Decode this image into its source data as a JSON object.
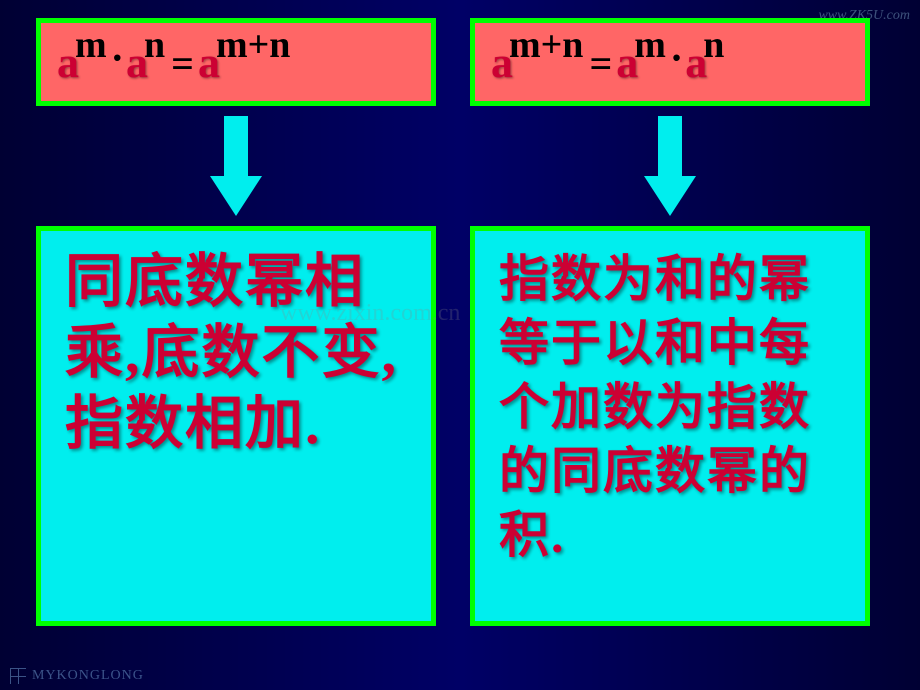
{
  "watermark": {
    "top_right": "www.ZK5U.com",
    "center": "www.zixin.com.cn",
    "footer": "MYKONGLONG"
  },
  "left": {
    "formula": {
      "base1": "a",
      "exp1": "m",
      "dot": "·",
      "base2": "a",
      "exp2": "n",
      "eq": "=",
      "base3": "a",
      "exp3": "m+n"
    },
    "text": "同底数幂相乘,底数不变,指数相加."
  },
  "right": {
    "formula": {
      "base1": "a",
      "exp1": "m+n",
      "eq": "=",
      "base2": "a",
      "exp2": "m",
      "dot": "·",
      "base3": "a",
      "exp3": "n"
    },
    "text": "指数为和的幂等于以和中每个加数为指数的同底数幂的积."
  },
  "colors": {
    "slide_bg_dark": "#000033",
    "box_border": "#00ff00",
    "formula_bg": "#ff6666",
    "arrow_color": "#00eeee",
    "text_bg": "#00eeee",
    "text_color": "#cc0033",
    "superscript_color": "#000000"
  }
}
